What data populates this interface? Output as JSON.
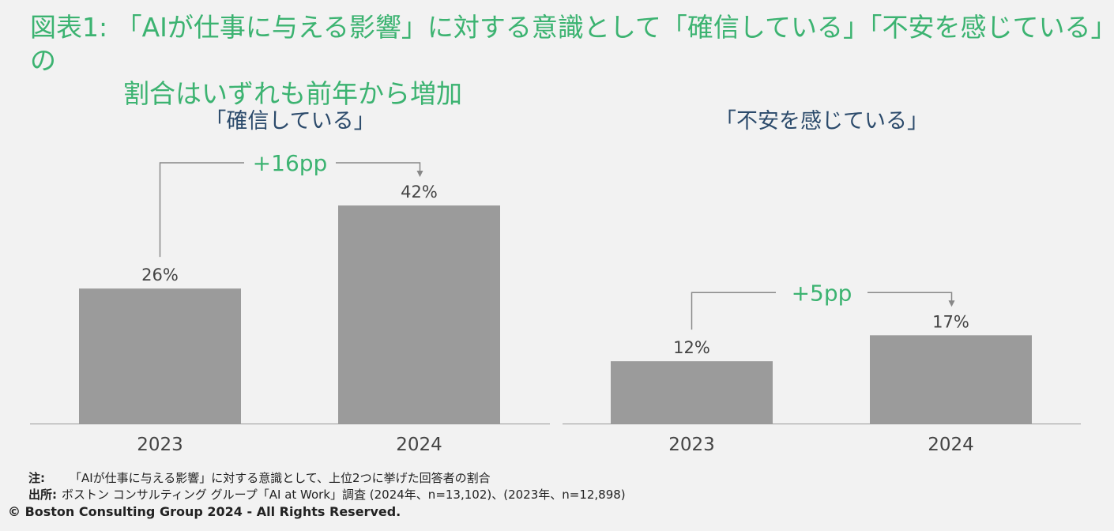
{
  "title_line1": "図表1: 「AIが仕事に与える影響」に対する意識として「確信している」「不安を感じている」の",
  "title_line2": "割合はいずれも前年から増加",
  "colors": {
    "accent": "#3cb371",
    "bar": "#9b9b9b",
    "text": "#444444",
    "panel_title": "#2b4a6b",
    "bracket": "#888888"
  },
  "chart_data": [
    {
      "type": "bar",
      "title": "「確信している」",
      "categories": [
        "2023",
        "2024"
      ],
      "values": [
        26,
        42
      ],
      "value_labels": [
        "26%",
        "42%"
      ],
      "unit": "%",
      "ylim": [
        0,
        55
      ],
      "annotation": "+16pp"
    },
    {
      "type": "bar",
      "title": "「不安を感じている」",
      "categories": [
        "2023",
        "2024"
      ],
      "values": [
        12,
        17
      ],
      "value_labels": [
        "12%",
        "17%"
      ],
      "unit": "%",
      "ylim": [
        0,
        55
      ],
      "annotation": "+5pp"
    }
  ],
  "footnote": {
    "note_label": "注:",
    "note_text": "「AIが仕事に与える影響」に対する意識として、上位2つに挙げた回答者の割合",
    "source_label": "出所:",
    "source_text": "ボストン コンサルティング グループ「AI at Work」調査 (2024年、n=13,102)、(2023年、n=12,898)",
    "copyright": "© Boston Consulting Group 2024 - All Rights Reserved."
  }
}
